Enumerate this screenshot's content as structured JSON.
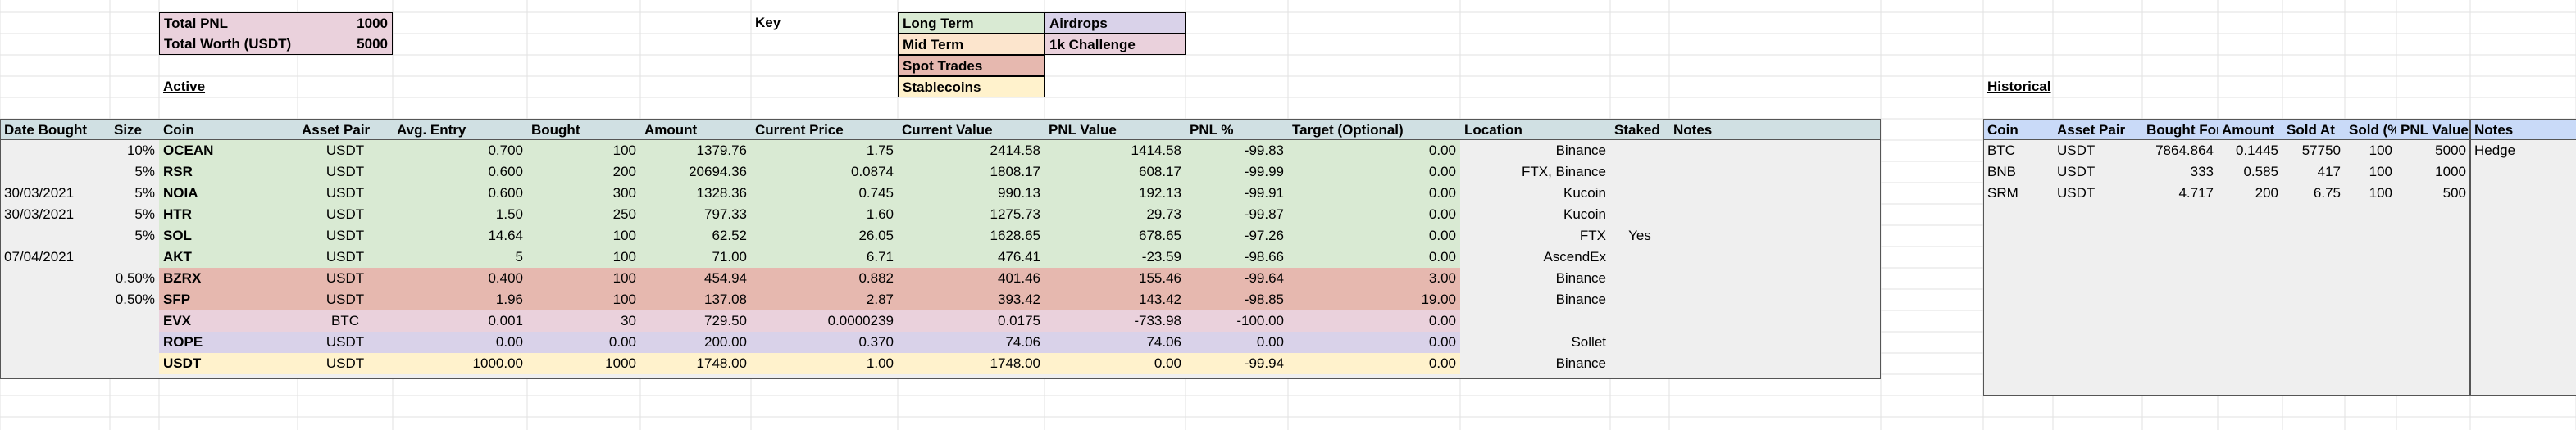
{
  "summary": {
    "total_pnl_label": "Total PNL",
    "total_pnl_value": "1000",
    "total_worth_label": "Total Worth (USDT)",
    "total_worth_value": "5000"
  },
  "key": {
    "title": "Key",
    "long_term": "Long Term",
    "mid_term": "Mid Term",
    "spot_trades": "Spot Trades",
    "stablecoins": "Stablecoins",
    "airdrops": "Airdrops",
    "challenge": "1k Challenge"
  },
  "sections": {
    "active": "Active",
    "historical": "Historical"
  },
  "colors": {
    "long_term": "#d9ead3",
    "mid_term": "#fce5cd",
    "spot_trades": "#e6b8af",
    "stablecoins": "#fff2cc",
    "airdrops": "#d9d2e9",
    "challenge": "#ead1dc",
    "header": "#d0e0e3",
    "historical_header": "#c9daf8",
    "gray": "#efefef"
  },
  "active_table": {
    "headers": [
      "Date Bought",
      "Size",
      "Coin",
      "Asset Pair",
      "Avg. Entry",
      "Bought",
      "Amount",
      "Current Price",
      "Current Value",
      "PNL Value",
      "PNL %",
      "Target (Optional)",
      "Location",
      "Staked",
      "Notes"
    ],
    "rows": [
      {
        "cat": "long_term",
        "cells": [
          "",
          "10%",
          "OCEAN",
          "USDT",
          "0.700",
          "100",
          "1379.76",
          "1.75",
          "2414.58",
          "1414.58",
          "-99.83",
          "0.00",
          "Binance",
          "",
          ""
        ]
      },
      {
        "cat": "long_term",
        "cells": [
          "",
          "5%",
          "RSR",
          "USDT",
          "0.600",
          "200",
          "20694.36",
          "0.0874",
          "1808.17",
          "608.17",
          "-99.99",
          "0.00",
          "FTX, Binance",
          "",
          ""
        ]
      },
      {
        "cat": "long_term",
        "cells": [
          "30/03/2021",
          "5%",
          "NOIA",
          "USDT",
          "0.600",
          "300",
          "1328.36",
          "0.745",
          "990.13",
          "192.13",
          "-99.91",
          "0.00",
          "Kucoin",
          "",
          ""
        ]
      },
      {
        "cat": "long_term",
        "cells": [
          "30/03/2021",
          "5%",
          "HTR",
          "USDT",
          "1.50",
          "250",
          "797.33",
          "1.60",
          "1275.73",
          "29.73",
          "-99.87",
          "0.00",
          "Kucoin",
          "",
          ""
        ]
      },
      {
        "cat": "long_term",
        "cells": [
          "",
          "5%",
          "SOL",
          "USDT",
          "14.64",
          "100",
          "62.52",
          "26.05",
          "1628.65",
          "678.65",
          "-97.26",
          "0.00",
          "FTX",
          "Yes",
          ""
        ]
      },
      {
        "cat": "long_term",
        "cells": [
          "07/04/2021",
          "",
          "AKT",
          "USDT",
          "5",
          "100",
          "71.00",
          "6.71",
          "476.41",
          "-23.59",
          "-98.66",
          "0.00",
          "AscendEx",
          "",
          ""
        ]
      },
      {
        "cat": "spot_trades",
        "cells": [
          "",
          "0.50%",
          "BZRX",
          "USDT",
          "0.400",
          "100",
          "454.94",
          "0.882",
          "401.46",
          "155.46",
          "-99.64",
          "3.00",
          "Binance",
          "",
          ""
        ]
      },
      {
        "cat": "spot_trades",
        "cells": [
          "",
          "0.50%",
          "SFP",
          "USDT",
          "1.96",
          "100",
          "137.08",
          "2.87",
          "393.42",
          "143.42",
          "-98.85",
          "19.00",
          "Binance",
          "",
          ""
        ]
      },
      {
        "cat": "challenge",
        "cells": [
          "",
          "",
          "EVX",
          "BTC",
          "0.001",
          "30",
          "729.50",
          "0.0000239",
          "0.0175",
          "-733.98",
          "-100.00",
          "0.00",
          "",
          "",
          ""
        ]
      },
      {
        "cat": "airdrops",
        "cells": [
          "",
          "",
          "ROPE",
          "USDT",
          "0.00",
          "0.00",
          "200.00",
          "0.370",
          "74.06",
          "74.06",
          "0.00",
          "0.00",
          "Sollet",
          "",
          ""
        ]
      },
      {
        "cat": "stablecoins",
        "cells": [
          "",
          "",
          "USDT",
          "USDT",
          "1000.00",
          "1000",
          "1748.00",
          "1.00",
          "1748.00",
          "0.00",
          "-99.94",
          "0.00",
          "Binance",
          "",
          ""
        ]
      }
    ]
  },
  "historical_table": {
    "headers": [
      "Coin",
      "Asset Pair",
      "Bought For",
      "Amount",
      "Sold At",
      "Sold (%)",
      "PNL Value",
      "Notes"
    ],
    "rows": [
      [
        "BTC",
        "USDT",
        "7864.864",
        "0.1445",
        "57750",
        "100",
        "5000",
        "Hedge"
      ],
      [
        "BNB",
        "USDT",
        "333",
        "0.585",
        "417",
        "100",
        "1000",
        ""
      ],
      [
        "SRM",
        "USDT",
        "4.717",
        "200",
        "6.75",
        "100",
        "500",
        ""
      ]
    ]
  }
}
